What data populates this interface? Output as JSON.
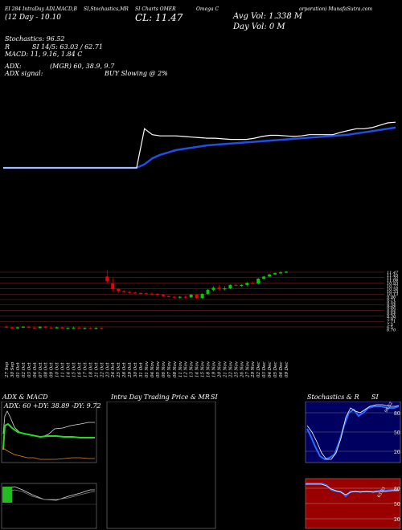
{
  "header": {
    "line1_left": "EI 284 IntraDay ADLMACD,B",
    "line1_mid": "SI,Stochastics,MR",
    "line1_mid2": "SI Charts OMER",
    "line1_right": "Omega C",
    "line1_far": "orporation) MunafaSutra.com",
    "line2_left": "(12 Day - 10.10",
    "close_label": "CL: 11.47",
    "avg_vol": "Avg Vol: 1.338  M",
    "day_vol": "Day Vol: 0   M",
    "stoch": "Stochastics: 96.52",
    "r_line": "R",
    "si_line": "SI 14/5: 63.03 / 62.71",
    "macd": "MACD: 11, 9.16, 1.84  C",
    "adx": "ADX:",
    "adx_vals": "(MGR) 60,  38.9,  9.7",
    "adx_signal": "ADX  signal:",
    "buy_signal": "BUY Slowing @ 2%"
  },
  "price_labels": [
    "11.47",
    "11.45",
    "11.32",
    "11.04",
    "10.93",
    "10.72",
    "10.54",
    "10.33",
    "10.13",
    "9.96",
    "9.71",
    "9.54",
    "9.34",
    "9.06",
    "8.84",
    "8.64",
    "8.36",
    "7.97",
    "7.71",
    "7.5",
    "6.5",
    "6.70"
  ],
  "dates": [
    "27 Sep",
    "30 Sep",
    "01 Oct",
    "02 Oct",
    "03 Oct",
    "04 Oct",
    "07 Oct",
    "08 Oct",
    "09 Oct",
    "10 Oct",
    "11 Oct",
    "14 Oct",
    "15 Oct",
    "16 Oct",
    "17 Oct",
    "18 Oct",
    "21 Oct",
    "22 Oct",
    "23 Oct",
    "24 Oct",
    "25 Oct",
    "28 Oct",
    "29 Oct",
    "30 Oct",
    "31 Oct",
    "01 Nov",
    "04 Nov",
    "05 Nov",
    "06 Nov",
    "07 Nov",
    "08 Nov",
    "11 Nov",
    "12 Nov",
    "13 Nov",
    "14 Nov",
    "15 Nov",
    "18 Nov",
    "19 Nov",
    "20 Nov",
    "21 Nov",
    "22 Nov",
    "25 Nov",
    "26 Nov",
    "27 Nov",
    "29 Nov",
    "02 Dec",
    "03 Dec",
    "04 Dec",
    "05 Dec",
    "06 Dec",
    "09 Dec"
  ],
  "panels": {
    "adx_title": "ADX  & MACD",
    "adx_values": "ADX: 60   +DY: 38.89  -DY: 9.72",
    "intra_title": "Intra  Day Trading Price  & MR",
    "intra_si": "SI",
    "stoch_title": "Stochastics & R",
    "stoch_si": "SI",
    "stoch_ticks": [
      "80",
      "50",
      "20"
    ],
    "rsi_ticks": [
      "80",
      "50",
      "20"
    ],
    "stoch_value": "96.52",
    "rsi_value": "63.03"
  },
  "colors": {
    "up": "#00cc00",
    "down": "#ee0000",
    "ma": "#1f4fe6",
    "price": "#ffffff",
    "grid": "#8a2b2b",
    "navy": "#000060",
    "darkred": "#9a0000"
  },
  "chart_data": {
    "type": "line",
    "title": "Omega Corporation (OMER) daily chart",
    "series": [
      {
        "name": "close",
        "values": [
          7.2,
          7.2,
          7.2,
          7.2,
          7.2,
          7.2,
          7.2,
          7.2,
          7.2,
          7.2,
          7.2,
          7.2,
          7.2,
          7.2,
          7.2,
          7.2,
          7.2,
          7.2,
          10.5,
          10.0,
          9.9,
          9.9,
          9.9,
          9.85,
          9.8,
          9.75,
          9.7,
          9.7,
          9.65,
          9.6,
          9.6,
          9.6,
          9.7,
          9.85,
          9.95,
          9.95,
          9.9,
          9.85,
          9.9,
          10.0,
          10.0,
          10.0,
          10.0,
          10.2,
          10.35,
          10.5,
          10.5,
          10.6,
          10.8,
          11.0,
          11.05
        ]
      },
      {
        "name": "ma",
        "values": [
          7.2,
          7.2,
          7.2,
          7.2,
          7.2,
          7.2,
          7.2,
          7.2,
          7.2,
          7.2,
          7.2,
          7.2,
          7.2,
          7.2,
          7.2,
          7.2,
          7.2,
          7.2,
          7.5,
          8.0,
          8.3,
          8.5,
          8.7,
          8.8,
          8.9,
          9.0,
          9.1,
          9.15,
          9.2,
          9.25,
          9.3,
          9.35,
          9.4,
          9.45,
          9.5,
          9.55,
          9.6,
          9.65,
          9.7,
          9.75,
          9.8,
          9.85,
          9.9,
          9.95,
          10.0,
          10.1,
          10.2,
          10.3,
          10.4,
          10.5,
          10.6
        ]
      }
    ],
    "candles": [
      [
        7.3,
        7.4,
        7.2,
        7.25
      ],
      [
        7.25,
        7.3,
        7.15,
        7.2
      ],
      [
        7.2,
        7.3,
        7.15,
        7.25
      ],
      [
        7.25,
        7.35,
        7.2,
        7.3
      ],
      [
        7.3,
        7.35,
        7.2,
        7.22
      ],
      [
        7.22,
        7.3,
        7.15,
        7.2
      ],
      [
        7.2,
        7.35,
        7.18,
        7.3
      ],
      [
        7.3,
        7.35,
        7.2,
        7.22
      ],
      [
        7.22,
        7.3,
        7.15,
        7.2
      ],
      [
        7.2,
        7.3,
        7.15,
        7.25
      ],
      [
        7.25,
        7.3,
        7.15,
        7.18
      ],
      [
        7.18,
        7.25,
        7.1,
        7.2
      ],
      [
        7.2,
        7.3,
        7.15,
        7.22
      ],
      [
        7.22,
        7.3,
        7.15,
        7.18
      ],
      [
        7.18,
        7.25,
        7.1,
        7.2
      ],
      [
        7.2,
        7.25,
        7.1,
        7.15
      ],
      [
        7.15,
        7.25,
        7.1,
        7.2
      ],
      [
        7.2,
        7.25,
        7.1,
        7.18
      ],
      [
        10.9,
        11.4,
        10.4,
        10.55
      ],
      [
        10.4,
        10.8,
        9.8,
        10.0
      ],
      [
        10.0,
        10.1,
        9.7,
        9.85
      ],
      [
        9.85,
        9.95,
        9.7,
        9.8
      ],
      [
        9.8,
        9.9,
        9.7,
        9.75
      ],
      [
        9.75,
        9.85,
        9.65,
        9.72
      ],
      [
        9.72,
        9.8,
        9.6,
        9.7
      ],
      [
        9.7,
        9.8,
        9.6,
        9.68
      ],
      [
        9.68,
        9.75,
        9.55,
        9.65
      ],
      [
        9.65,
        9.72,
        9.55,
        9.6
      ],
      [
        9.6,
        9.65,
        9.45,
        9.5
      ],
      [
        9.5,
        9.55,
        9.4,
        9.45
      ],
      [
        9.45,
        9.5,
        9.35,
        9.4
      ],
      [
        9.4,
        9.5,
        9.3,
        9.45
      ],
      [
        9.45,
        9.55,
        9.35,
        9.4
      ],
      [
        9.4,
        9.65,
        9.38,
        9.6
      ],
      [
        9.6,
        9.65,
        9.3,
        9.35
      ],
      [
        9.35,
        9.7,
        9.3,
        9.65
      ],
      [
        9.65,
        10.0,
        9.6,
        9.95
      ],
      [
        9.95,
        10.2,
        9.85,
        10.1
      ],
      [
        10.1,
        10.3,
        9.9,
        10.0
      ],
      [
        10.0,
        10.2,
        9.9,
        10.05
      ],
      [
        10.05,
        10.35,
        10.0,
        10.3
      ],
      [
        10.3,
        10.4,
        10.2,
        10.25
      ],
      [
        10.25,
        10.35,
        10.15,
        10.3
      ],
      [
        10.3,
        10.5,
        10.2,
        10.45
      ],
      [
        10.45,
        10.55,
        10.35,
        10.4
      ],
      [
        10.4,
        10.8,
        10.35,
        10.75
      ],
      [
        10.75,
        10.95,
        10.7,
        10.9
      ],
      [
        10.9,
        11.1,
        10.85,
        11.05
      ],
      [
        11.05,
        11.2,
        11.0,
        11.15
      ],
      [
        11.15,
        11.3,
        11.1,
        11.2
      ],
      [
        11.2,
        11.3,
        11.15,
        11.25
      ]
    ]
  }
}
